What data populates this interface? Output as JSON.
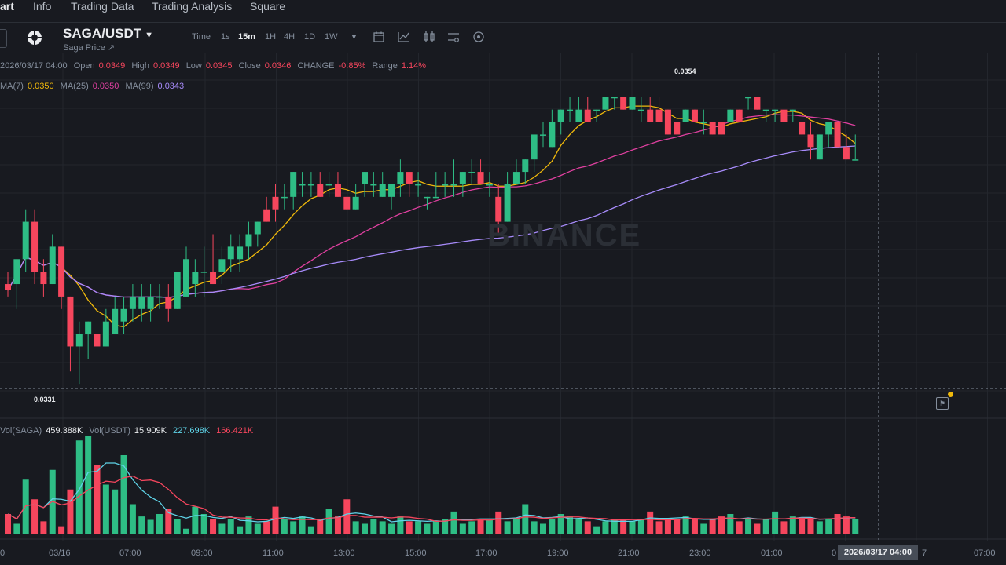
{
  "nav": {
    "tabs": [
      "art",
      "Info",
      "Trading Data",
      "Trading Analysis",
      "Square"
    ]
  },
  "toolbar": {
    "pair": "SAGA/USDT",
    "subtitle": "Saga Price ↗",
    "time_label": "Time",
    "intervals": [
      "1s",
      "15m",
      "1H",
      "4H",
      "1D",
      "1W"
    ],
    "active_interval": "15m",
    "icons": [
      "calendar-icon",
      "indicator-icon",
      "layout-icon",
      "settings-sliders-icon",
      "eye-icon"
    ]
  },
  "ohlc": {
    "date": "2026/03/17 04:00",
    "open_label": "Open",
    "open": "0.0349",
    "high_label": "High",
    "high": "0.0349",
    "low_label": "Low",
    "low": "0.0345",
    "close_label": "Close",
    "close": "0.0346",
    "change_label": "CHANGE",
    "change": "-0.85%",
    "range_label": "Range",
    "range": "1.14%"
  },
  "ma": {
    "ma7_label": "MA(7)",
    "ma7": "0.0350",
    "ma25_label": "MA(25)",
    "ma25": "0.0350",
    "ma99_label": "MA(99)",
    "ma99": "0.0343"
  },
  "volume": {
    "base_label": "Vol(SAGA)",
    "base_value": "459.388K",
    "quote_label": "Vol(USDT)",
    "quote_value": "15.909K",
    "ma5": "227.698K",
    "ma10": "166.421K"
  },
  "price_markers": {
    "high": "0.0354",
    "low": "0.0331"
  },
  "watermark": "BINANCE",
  "x_axis": [
    "0",
    "03/16",
    "07:00",
    "09:00",
    "11:00",
    "13:00",
    "15:00",
    "17:00",
    "19:00",
    "21:00",
    "23:00",
    "01:00",
    "0",
    "7",
    "07:00"
  ],
  "crosshair_label": "2026/03/17 04:00",
  "colors": {
    "up": "#2ebd85",
    "down": "#f6465d",
    "ma7": "#f0b90b",
    "ma25": "#e040a0",
    "ma99": "#a78bfa",
    "vol_ma_fast": "#5fd4e8",
    "vol_ma_slow": "#f6465d",
    "bg": "#181a20"
  },
  "chart_data": {
    "type": "candlestick",
    "interval": "15m",
    "candles": [
      [
        0.0339,
        0.034,
        0.0338,
        0.03385
      ],
      [
        0.0339,
        0.0341,
        0.0337,
        0.0341
      ],
      [
        0.0341,
        0.0345,
        0.034,
        0.0344
      ],
      [
        0.0344,
        0.0345,
        0.0339,
        0.034
      ],
      [
        0.034,
        0.0341,
        0.0338,
        0.0339
      ],
      [
        0.0339,
        0.0343,
        0.0339,
        0.0342
      ],
      [
        0.0342,
        0.0342,
        0.0337,
        0.0338
      ],
      [
        0.0338,
        0.0338,
        0.0332,
        0.0334
      ],
      [
        0.0334,
        0.0336,
        0.0331,
        0.0335
      ],
      [
        0.0335,
        0.0336,
        0.0333,
        0.0336
      ],
      [
        0.0335,
        0.0337,
        0.0334,
        0.0334
      ],
      [
        0.0334,
        0.0337,
        0.0334,
        0.0336
      ],
      [
        0.0335,
        0.0338,
        0.0335,
        0.0337
      ],
      [
        0.0336,
        0.0338,
        0.0335,
        0.0337
      ],
      [
        0.0337,
        0.0339,
        0.0336,
        0.0338
      ],
      [
        0.0337,
        0.0339,
        0.0336,
        0.0338
      ],
      [
        0.0337,
        0.0339,
        0.0336,
        0.0338
      ],
      [
        0.0338,
        0.0339,
        0.0337,
        0.0338
      ],
      [
        0.0338,
        0.0339,
        0.0336,
        0.0337
      ],
      [
        0.0337,
        0.034,
        0.0337,
        0.034
      ],
      [
        0.0338,
        0.0342,
        0.0338,
        0.0341
      ],
      [
        0.0339,
        0.0341,
        0.0338,
        0.034
      ],
      [
        0.034,
        0.0342,
        0.0338,
        0.034
      ],
      [
        0.034,
        0.0343,
        0.0339,
        0.0339
      ],
      [
        0.034,
        0.0342,
        0.0339,
        0.0341
      ],
      [
        0.0341,
        0.0343,
        0.034,
        0.0342
      ],
      [
        0.0341,
        0.0343,
        0.034,
        0.0342
      ],
      [
        0.0342,
        0.0344,
        0.0341,
        0.0343
      ],
      [
        0.0343,
        0.0344,
        0.0342,
        0.0344
      ],
      [
        0.0345,
        0.0346,
        0.0344,
        0.0344
      ],
      [
        0.0346,
        0.0347,
        0.0344,
        0.0345
      ],
      [
        0.0346,
        0.0347,
        0.0345,
        0.0346
      ],
      [
        0.0346,
        0.0348,
        0.0345,
        0.0348
      ],
      [
        0.0347,
        0.0348,
        0.0346,
        0.0347
      ],
      [
        0.0347,
        0.0348,
        0.0346,
        0.0347
      ],
      [
        0.0347,
        0.0348,
        0.0346,
        0.0346
      ],
      [
        0.0347,
        0.0348,
        0.0346,
        0.0347
      ],
      [
        0.0347,
        0.0348,
        0.0346,
        0.0346
      ],
      [
        0.0346,
        0.0346,
        0.0345,
        0.0345
      ],
      [
        0.0345,
        0.0347,
        0.0345,
        0.0346
      ],
      [
        0.0347,
        0.0348,
        0.0346,
        0.0348
      ],
      [
        0.0347,
        0.0348,
        0.0346,
        0.0347
      ],
      [
        0.0346,
        0.0348,
        0.0346,
        0.0347
      ],
      [
        0.0346,
        0.0347,
        0.0345,
        0.0347
      ],
      [
        0.0347,
        0.0349,
        0.0346,
        0.0348
      ],
      [
        0.0348,
        0.0348,
        0.0346,
        0.0347
      ],
      [
        0.0347,
        0.0348,
        0.0346,
        0.0347
      ],
      [
        0.0346,
        0.0346,
        0.0345,
        0.0346
      ],
      [
        0.0346,
        0.0348,
        0.0346,
        0.0346
      ],
      [
        0.0347,
        0.0348,
        0.0346,
        0.0347
      ],
      [
        0.0347,
        0.0349,
        0.0346,
        0.0347
      ],
      [
        0.0347,
        0.0348,
        0.0346,
        0.0348
      ],
      [
        0.0348,
        0.0349,
        0.0347,
        0.0348
      ],
      [
        0.0348,
        0.0349,
        0.0347,
        0.0347
      ],
      [
        0.0347,
        0.0348,
        0.0346,
        0.0347
      ],
      [
        0.0346,
        0.0347,
        0.0343,
        0.0344
      ],
      [
        0.0344,
        0.0348,
        0.0344,
        0.0347
      ],
      [
        0.0347,
        0.0349,
        0.0347,
        0.0348
      ],
      [
        0.0348,
        0.0349,
        0.0347,
        0.0349
      ],
      [
        0.0349,
        0.0351,
        0.0348,
        0.0351
      ],
      [
        0.0351,
        0.0352,
        0.035,
        0.0351
      ],
      [
        0.035,
        0.0353,
        0.035,
        0.0352
      ],
      [
        0.0352,
        0.0353,
        0.0351,
        0.0353
      ],
      [
        0.0353,
        0.0354,
        0.0352,
        0.0353
      ],
      [
        0.0352,
        0.0354,
        0.0352,
        0.0353
      ],
      [
        0.0353,
        0.0354,
        0.0352,
        0.0352
      ],
      [
        0.0353,
        0.0353,
        0.0352,
        0.0353
      ],
      [
        0.0353,
        0.0354,
        0.0353,
        0.0354
      ],
      [
        0.0354,
        0.0354,
        0.0353,
        0.0354
      ],
      [
        0.0354,
        0.0354,
        0.0353,
        0.0353
      ],
      [
        0.0353,
        0.0354,
        0.0353,
        0.0354
      ],
      [
        0.0353,
        0.0354,
        0.0352,
        0.0353
      ],
      [
        0.0353,
        0.0354,
        0.0352,
        0.0352
      ],
      [
        0.0353,
        0.0354,
        0.0352,
        0.0352
      ],
      [
        0.0353,
        0.0353,
        0.0351,
        0.0351
      ],
      [
        0.0352,
        0.0352,
        0.0351,
        0.0351
      ],
      [
        0.0352,
        0.0353,
        0.0352,
        0.0353
      ],
      [
        0.0353,
        0.0353,
        0.0352,
        0.0352
      ],
      [
        0.0352,
        0.0353,
        0.0351,
        0.0352
      ],
      [
        0.0352,
        0.0352,
        0.0351,
        0.0351
      ],
      [
        0.0352,
        0.0352,
        0.0351,
        0.0351
      ],
      [
        0.0352,
        0.0353,
        0.0352,
        0.0353
      ],
      [
        0.0353,
        0.0353,
        0.0352,
        0.0352
      ],
      [
        0.0354,
        0.0354,
        0.0353,
        0.0354
      ],
      [
        0.0354,
        0.0354,
        0.0353,
        0.0353
      ],
      [
        0.0353,
        0.0353,
        0.0352,
        0.0353
      ],
      [
        0.0353,
        0.0353,
        0.0352,
        0.0353
      ],
      [
        0.0353,
        0.0353,
        0.0352,
        0.0352
      ],
      [
        0.0353,
        0.0353,
        0.0352,
        0.0353
      ],
      [
        0.0352,
        0.0352,
        0.0351,
        0.0351
      ],
      [
        0.0351,
        0.0352,
        0.0349,
        0.035
      ],
      [
        0.0349,
        0.0351,
        0.0349,
        0.0351
      ],
      [
        0.0351,
        0.0352,
        0.035,
        0.0352
      ],
      [
        0.0352,
        0.0352,
        0.035,
        0.035
      ],
      [
        0.035,
        0.0351,
        0.0349,
        0.0349
      ],
      [
        0.0349,
        0.0351,
        0.0349,
        0.0349
      ]
    ],
    "volumes": [
      40,
      20,
      110,
      70,
      25,
      130,
      15,
      90,
      190,
      200,
      140,
      100,
      90,
      160,
      60,
      35,
      28,
      40,
      50,
      30,
      10,
      55,
      40,
      30,
      20,
      30,
      15,
      35,
      20,
      25,
      55,
      30,
      25,
      35,
      15,
      30,
      50,
      35,
      70,
      25,
      20,
      30,
      25,
      20,
      35,
      25,
      25,
      20,
      25,
      30,
      45,
      20,
      25,
      30,
      30,
      45,
      25,
      30,
      60,
      25,
      20,
      30,
      40,
      35,
      30,
      25,
      15,
      25,
      30,
      30,
      25,
      30,
      45,
      25,
      30,
      30,
      35,
      30,
      20,
      30,
      35,
      40,
      25,
      30,
      20,
      30,
      45,
      25,
      35,
      30,
      30,
      25,
      30,
      40,
      35,
      30
    ],
    "ylim": [
      0.033,
      0.0356
    ]
  }
}
